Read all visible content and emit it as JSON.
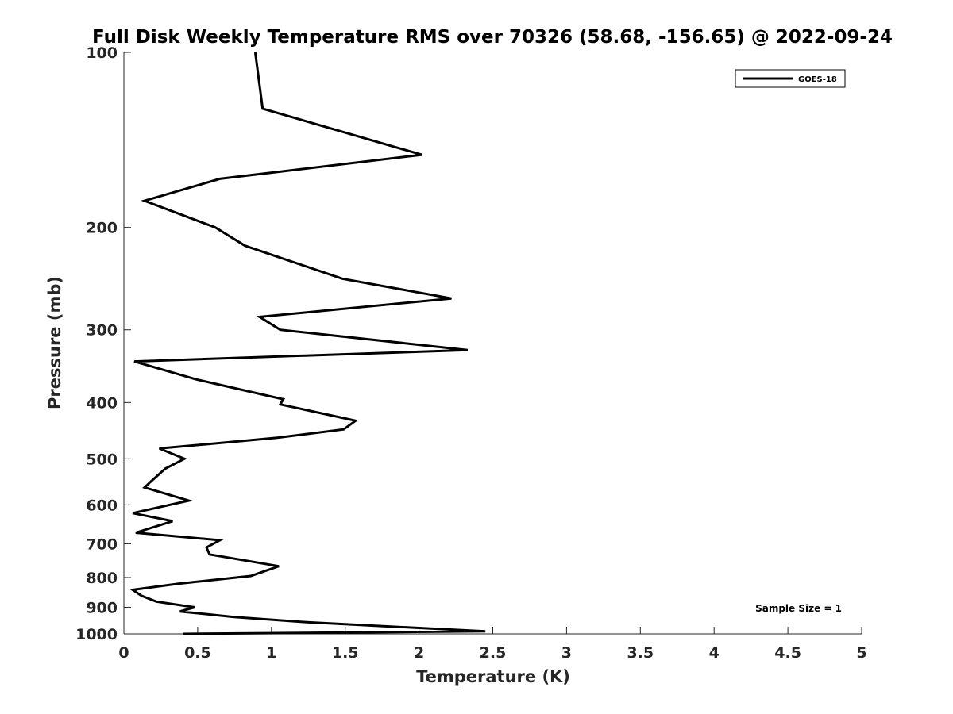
{
  "chart_data": {
    "type": "line",
    "title": "Full Disk Weekly Temperature RMS over 70326 (58.68, -156.65) @ 2022-09-24",
    "xlabel": "Temperature (K)",
    "ylabel": "Pressure (mb)",
    "xlim": [
      0,
      5
    ],
    "ylim": [
      100,
      1000
    ],
    "y_scale": "log",
    "y_reversed": true,
    "x_ticks": [
      0,
      0.5,
      1,
      1.5,
      2,
      2.5,
      3,
      3.5,
      4,
      4.5,
      5
    ],
    "x_tick_labels": [
      "0",
      "0.5",
      "1",
      "1.5",
      "2",
      "2.5",
      "3",
      "3.5",
      "4",
      "4.5",
      "5"
    ],
    "y_ticks": [
      100,
      200,
      300,
      400,
      500,
      600,
      700,
      800,
      900,
      1000
    ],
    "y_tick_labels": [
      "100",
      "200",
      "300",
      "400",
      "500",
      "600",
      "700",
      "800",
      "900",
      "1000"
    ],
    "grid": false,
    "legend_position": "top-right",
    "annotation": "Sample Size = 1",
    "series": [
      {
        "name": "GOES-18",
        "color": "#000000",
        "x": [
          0.89,
          0.94,
          2.02,
          0.65,
          0.14,
          0.62,
          0.82,
          1.48,
          2.22,
          0.92,
          1.06,
          2.33,
          0.07,
          0.49,
          1.08,
          1.06,
          1.57,
          1.49,
          1.04,
          0.24,
          0.41,
          0.28,
          0.19,
          0.14,
          0.44,
          0.06,
          0.33,
          0.08,
          0.65,
          0.56,
          0.58,
          1.05,
          0.86,
          0.37,
          0.06,
          0.12,
          0.22,
          0.48,
          0.38,
          0.74,
          1.24,
          2.45,
          0.4
        ],
        "y": [
          100,
          125,
          150,
          165,
          180,
          200,
          215,
          245,
          265,
          285,
          300,
          325,
          340,
          365,
          395,
          403,
          430,
          445,
          460,
          480,
          500,
          520,
          545,
          560,
          590,
          620,
          640,
          670,
          690,
          710,
          730,
          765,
          795,
          820,
          840,
          860,
          880,
          900,
          915,
          935,
          955,
          990,
          1000
        ]
      }
    ]
  }
}
